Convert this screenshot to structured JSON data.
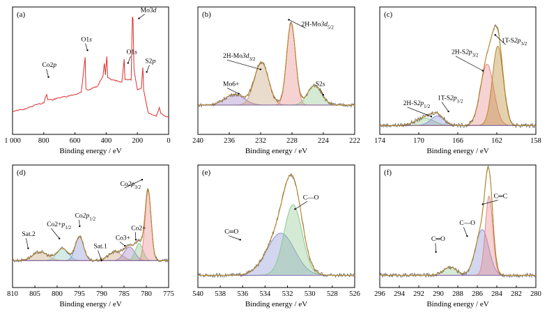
{
  "chart_data": [
    {
      "type": "line",
      "panel_label": "(a)",
      "xlabel": "Binding energy / eV",
      "xlim": [
        1000,
        0
      ],
      "xticks": [
        "1 000",
        "800",
        "600",
        "400",
        "200",
        "0"
      ],
      "annotations": [
        "Co2p",
        "O1s",
        "Mo3d",
        "O1s",
        "S2p"
      ],
      "series": [
        {
          "color": "#e02b2b",
          "points": [
            [
              1000,
              0.1
            ],
            [
              920,
              0.12
            ],
            [
              850,
              0.16
            ],
            [
              800,
              0.18
            ],
            [
              790,
              0.23
            ],
            [
              781,
              0.26
            ],
            [
              775,
              0.21
            ],
            [
              740,
              0.21
            ],
            [
              700,
              0.23
            ],
            [
              650,
              0.24
            ],
            [
              600,
              0.26
            ],
            [
              560,
              0.28
            ],
            [
              535,
              0.62
            ],
            [
              530,
              0.32
            ],
            [
              520,
              0.3
            ],
            [
              500,
              0.31
            ],
            [
              480,
              0.33
            ],
            [
              460,
              0.33
            ],
            [
              420,
              0.44
            ],
            [
              412,
              0.56
            ],
            [
              405,
              0.45
            ],
            [
              396,
              0.62
            ],
            [
              390,
              0.42
            ],
            [
              360,
              0.4
            ],
            [
              300,
              0.38
            ],
            [
              285,
              0.6
            ],
            [
              280,
              0.4
            ],
            [
              240,
              0.4
            ],
            [
              232,
              1.0
            ],
            [
              228,
              0.98
            ],
            [
              222,
              0.5
            ],
            [
              200,
              0.3
            ],
            [
              175,
              0.32
            ],
            [
              165,
              0.52
            ],
            [
              160,
              0.3
            ],
            [
              130,
              0.08
            ],
            [
              80,
              0.05
            ],
            [
              60,
              0.13
            ],
            [
              50,
              0.08
            ],
            [
              30,
              0.06
            ],
            [
              0,
              0.04
            ]
          ]
        }
      ]
    },
    {
      "type": "area",
      "panel_label": "(b)",
      "xlabel": "Binding energy / eV",
      "xlim": [
        240,
        222
      ],
      "xticks": [
        "240",
        "236",
        "232",
        "228",
        "224",
        "222"
      ],
      "annotations": [
        "Mo6+",
        "2H-Mo3d3/2",
        "2H-Mo3d5/2",
        "S2s"
      ],
      "series": [
        {
          "color": "#a07fc2",
          "center": 235.8,
          "fwhm": 2.6,
          "height": 0.12
        },
        {
          "color": "#c8a27a",
          "center": 232.7,
          "fwhm": 1.9,
          "height": 0.48
        },
        {
          "color": "#e88888",
          "center": 229.3,
          "fwhm": 1.2,
          "height": 0.92
        },
        {
          "color": "#8ec98e",
          "center": 226.6,
          "fwhm": 1.9,
          "height": 0.22
        }
      ]
    },
    {
      "type": "area",
      "panel_label": "(c)",
      "xlabel": "Binding energy / eV",
      "xlim": [
        174,
        158
      ],
      "xticks": [
        "174",
        "170",
        "166",
        "162",
        "158"
      ],
      "annotations": [
        "2H-S2p1/2",
        "1T-S2p1/2",
        "2H-S2p3/2",
        "1T-S2p3/2"
      ],
      "series": [
        {
          "color": "#8ec98e",
          "center": 169.4,
          "fwhm": 2.2,
          "height": 0.07
        },
        {
          "color": "#8a94d6",
          "center": 168.1,
          "fwhm": 1.6,
          "height": 0.09
        },
        {
          "color": "#e88888",
          "center": 163.0,
          "fwhm": 1.6,
          "height": 0.58
        },
        {
          "color": "#b8862a",
          "center": 161.9,
          "fwhm": 1.3,
          "height": 0.75
        }
      ]
    },
    {
      "type": "area",
      "panel_label": "(d)",
      "xlabel": "Binding energy / eV",
      "xlim": [
        810,
        775
      ],
      "xticks": [
        "810",
        "805",
        "800",
        "795",
        "790",
        "785",
        "780",
        "775"
      ],
      "annotations": [
        "Co2p3/2",
        "Sat.2",
        "Co2+p1/2",
        "Co2p1/2",
        "Sat.1",
        "Co3+",
        "Co2+"
      ],
      "series": [
        {
          "color": "#c8a27a",
          "center": 803.8,
          "fwhm": 4.0,
          "height": 0.1
        },
        {
          "color": "#8ec9c0",
          "center": 798.8,
          "fwhm": 3.0,
          "height": 0.14
        },
        {
          "color": "#8a94d6",
          "center": 795.0,
          "fwhm": 2.2,
          "height": 0.28
        },
        {
          "color": "#c8a27a",
          "center": 787.0,
          "fwhm": 3.6,
          "height": 0.1
        },
        {
          "color": "#a07fc2",
          "center": 783.8,
          "fwhm": 2.8,
          "height": 0.16
        },
        {
          "color": "#8ec98e",
          "center": 781.6,
          "fwhm": 2.0,
          "height": 0.2
        },
        {
          "color": "#e88888",
          "center": 779.6,
          "fwhm": 1.6,
          "height": 0.82
        }
      ]
    },
    {
      "type": "area",
      "panel_label": "(e)",
      "xlabel": "Binding energy / eV",
      "xlim": [
        540,
        526
      ],
      "xticks": [
        "540",
        "538",
        "536",
        "534",
        "532",
        "530",
        "528",
        "526"
      ],
      "annotations": [
        "C═O",
        "C—O"
      ],
      "series": [
        {
          "color": "#8a94d6",
          "center": 532.6,
          "fwhm": 2.9,
          "height": 0.43
        },
        {
          "color": "#8ec98e",
          "center": 531.5,
          "fwhm": 1.9,
          "height": 0.72
        }
      ]
    },
    {
      "type": "area",
      "panel_label": "(f)",
      "xlabel": "Binding energy / eV",
      "xlim": [
        296,
        280
      ],
      "xticks": [
        "296",
        "294",
        "292",
        "290",
        "288",
        "286",
        "284",
        "282",
        "280"
      ],
      "annotations": [
        "C═O",
        "C—O",
        "C═C"
      ],
      "series": [
        {
          "color": "#8ec98e",
          "center": 288.8,
          "fwhm": 1.6,
          "height": 0.08
        },
        {
          "color": "#8a94d6",
          "center": 285.5,
          "fwhm": 1.6,
          "height": 0.45
        },
        {
          "color": "#e88888",
          "center": 284.8,
          "fwhm": 0.9,
          "height": 0.78
        }
      ]
    }
  ]
}
